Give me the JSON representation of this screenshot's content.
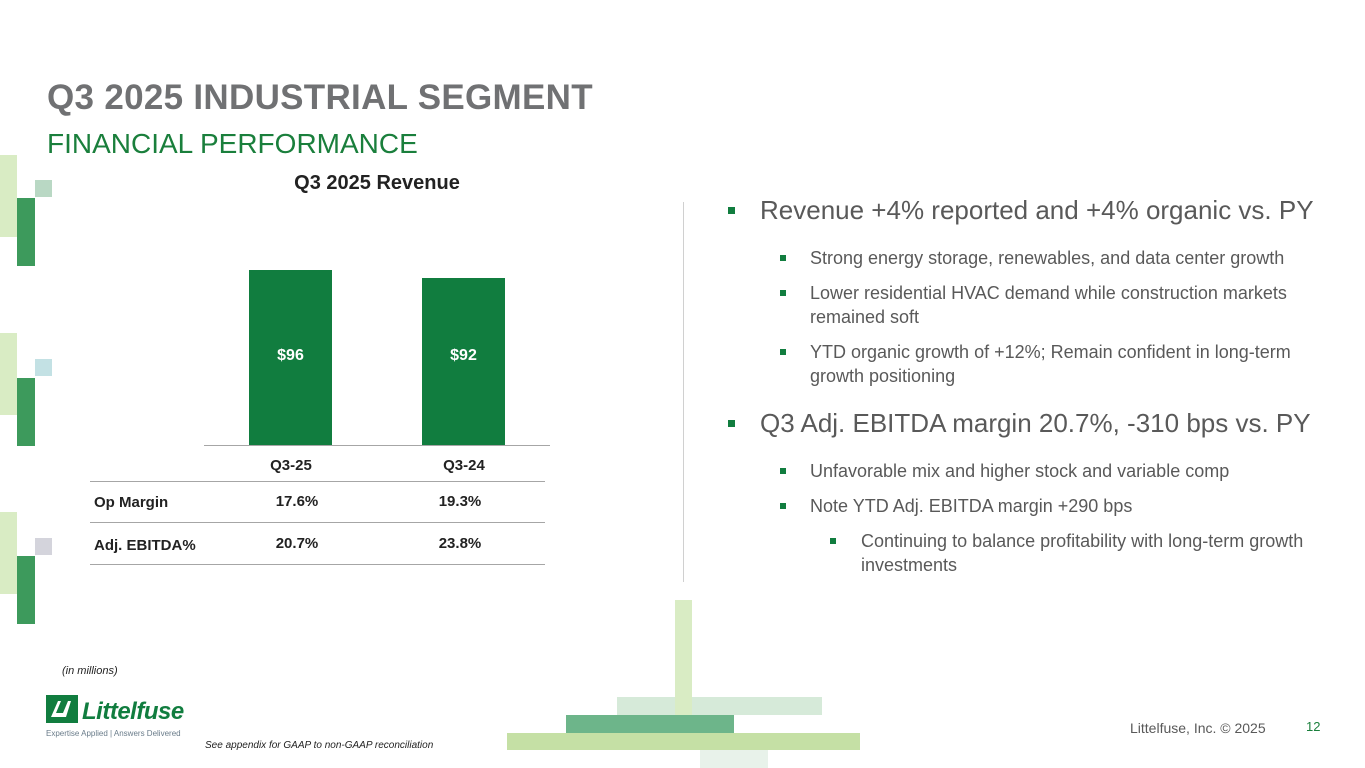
{
  "header": {
    "title": "Q3 2025 INDUSTRIAL SEGMENT",
    "subtitle": "FINANCIAL PERFORMANCE"
  },
  "chart_data": {
    "type": "bar",
    "title": "Q3 2025 Revenue",
    "categories": [
      "Q3-25",
      "Q3-24"
    ],
    "values": [
      96,
      92
    ],
    "value_labels": [
      "$96",
      "$92"
    ],
    "ylim": [
      0,
      100
    ],
    "xlabel": "",
    "ylabel": ""
  },
  "metrics_table": {
    "rows": [
      {
        "label": "Op Margin",
        "values": [
          "17.6%",
          "19.3%"
        ]
      },
      {
        "label": "Adj. EBITDA%",
        "values": [
          "20.7%",
          "23.8%"
        ]
      }
    ]
  },
  "bullets": {
    "b1": "Revenue +4% reported and +4% organic vs. PY",
    "b1_1": "Strong energy storage, renewables, and data center growth",
    "b1_2": "Lower residential HVAC demand while construction markets remained soft",
    "b1_3": "YTD organic growth of +12%; Remain confident in long-term growth positioning",
    "b2": "Q3 Adj. EBITDA margin 20.7%, -310 bps vs. PY",
    "b2_1": "Unfavorable mix and higher stock and variable comp",
    "b2_2": "Note YTD Adj. EBITDA margin +290 bps",
    "b2_2_1": "Continuing to balance profitability with long-term growth investments"
  },
  "footer": {
    "units_note": "(in millions)",
    "appendix_note": "See appendix for GAAP to non-GAAP reconciliation",
    "copyright": "Littelfuse, Inc. © 2025",
    "page_number": "12",
    "logo_text": "Littelfuse",
    "tagline": "Expertise Applied | Answers Delivered"
  },
  "colors": {
    "brand_green": "#117d3f",
    "title_gray": "#707173",
    "light_green": "#c5e0a5",
    "mid_green": "#6db58a",
    "pale_green": "#d6ead9"
  }
}
